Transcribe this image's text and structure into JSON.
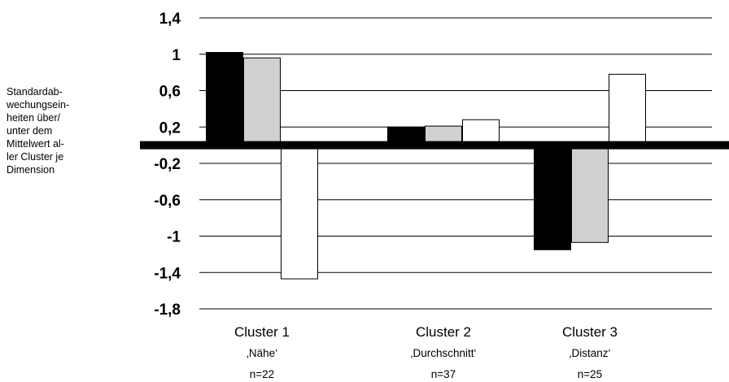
{
  "chart_data": {
    "type": "bar",
    "ylabel": "Standardab-\nwechungsein-\nheiten über/\nunter dem\nMittelwert al-\nler Cluster je\nDimension",
    "ylim": [
      -1.8,
      1.4
    ],
    "y_ticks": [
      "1,4",
      "1",
      "0,6",
      "0,2",
      "-0,2",
      "-0,6",
      "-1",
      "-1,4",
      "-1,8"
    ],
    "y_tick_values": [
      1.4,
      1.0,
      0.6,
      0.2,
      -0.2,
      -0.6,
      -1.0,
      -1.4,
      -1.8
    ],
    "grid": true,
    "categories": [
      {
        "name": "Cluster 1",
        "sub": "‚Nähe‘",
        "n": "n=22"
      },
      {
        "name": "Cluster 2",
        "sub": "‚Durchschnitt‘",
        "n": "n=37"
      },
      {
        "name": "Cluster 3",
        "sub": "‚Distanz‘",
        "n": "n=25"
      }
    ],
    "series": [
      {
        "color": "#000000",
        "values": [
          1.02,
          0.2,
          -1.15
        ]
      },
      {
        "color": "#d0d0d0",
        "values": [
          0.96,
          0.21,
          -1.07
        ]
      },
      {
        "color": "#ffffff",
        "values": [
          -1.47,
          0.28,
          0.78
        ]
      }
    ]
  }
}
